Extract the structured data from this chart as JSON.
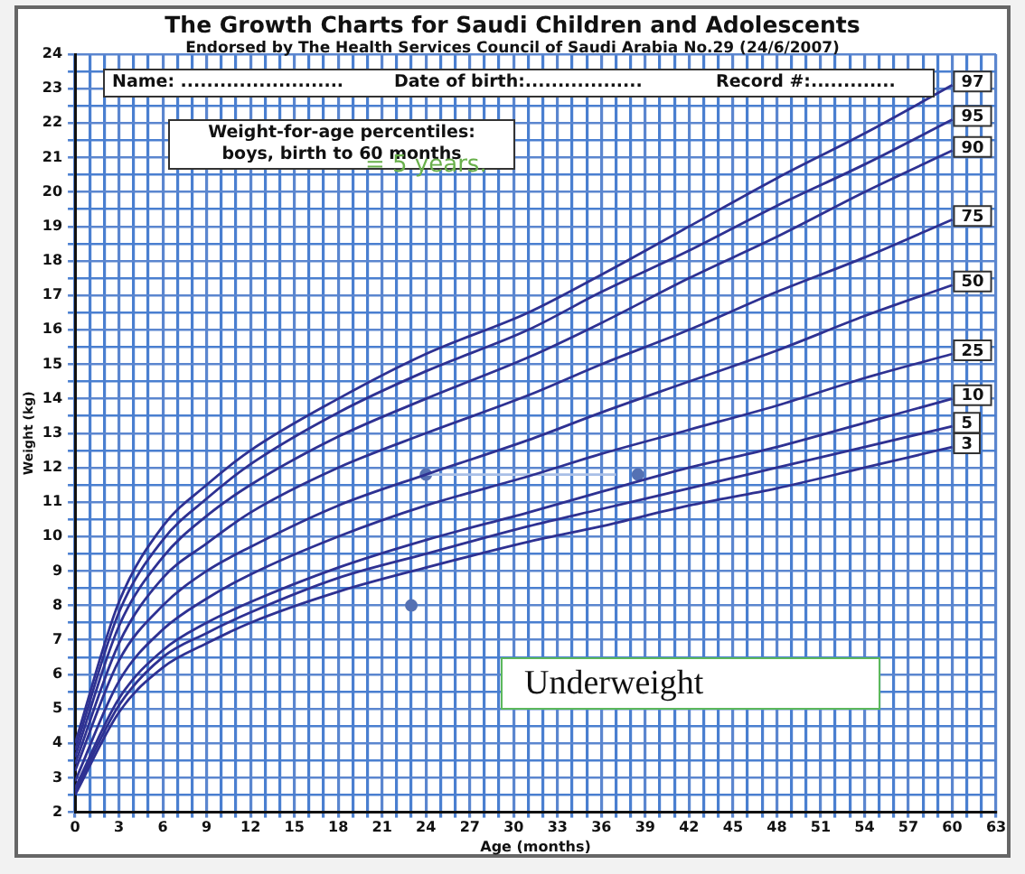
{
  "chart_data": {
    "type": "line",
    "title": "The Growth Charts for Saudi Children and Adolescents",
    "subtitle": "Endorsed by The Health Services Council of Saudi Arabia No.29 (24/6/2007)",
    "xlabel": "Age (months)",
    "ylabel": "Weight (kg)",
    "annotations": [
      "Name: .........................",
      "Date of birth:..................",
      "Record #:.............",
      "Weight-for-age percentiles: boys, birth to 60 months",
      "= 5 years.",
      "Underweight"
    ],
    "x": [
      0,
      3,
      6,
      9,
      12,
      18,
      24,
      31,
      36,
      42,
      48,
      54,
      60
    ],
    "series": [
      {
        "name": "97",
        "color": "#2e3192",
        "values": [
          4.0,
          8.1,
          10.3,
          11.5,
          12.5,
          14.0,
          15.3,
          16.5,
          17.6,
          19.0,
          20.4,
          21.7,
          23.1
        ]
      },
      {
        "name": "95",
        "color": "#2e3192",
        "values": [
          3.8,
          7.8,
          9.9,
          11.1,
          12.1,
          13.6,
          14.8,
          16.0,
          17.1,
          18.3,
          19.6,
          20.8,
          22.1
        ]
      },
      {
        "name": "90",
        "color": "#2e3192",
        "values": [
          3.6,
          7.4,
          9.4,
          10.6,
          11.5,
          12.9,
          14.0,
          15.2,
          16.2,
          17.5,
          18.7,
          20.0,
          21.2
        ]
      },
      {
        "name": "75",
        "color": "#2e3192",
        "values": [
          3.4,
          6.9,
          8.8,
          9.8,
          10.7,
          12.0,
          13.0,
          14.1,
          15.0,
          16.0,
          17.1,
          18.1,
          19.2
        ]
      },
      {
        "name": "50",
        "color": "#2e3192",
        "values": [
          3.2,
          6.4,
          8.0,
          9.0,
          9.7,
          10.9,
          11.8,
          12.8,
          13.6,
          14.5,
          15.4,
          16.4,
          17.3
        ]
      },
      {
        "name": "25",
        "color": "#2e3192",
        "values": [
          2.9,
          5.8,
          7.3,
          8.2,
          8.9,
          10.0,
          10.9,
          11.75,
          12.4,
          13.1,
          13.8,
          14.6,
          15.3
        ]
      },
      {
        "name": "10",
        "color": "#2e3192",
        "values": [
          2.7,
          5.3,
          6.7,
          7.5,
          8.1,
          9.1,
          9.9,
          10.7,
          11.3,
          12.0,
          12.6,
          13.3,
          14.0
        ]
      },
      {
        "name": "5",
        "color": "#2e3192",
        "values": [
          2.6,
          5.1,
          6.5,
          7.2,
          7.8,
          8.8,
          9.5,
          10.3,
          10.8,
          11.4,
          12.0,
          12.6,
          13.2
        ]
      },
      {
        "name": "3",
        "color": "#2e3192",
        "values": [
          2.5,
          4.9,
          6.2,
          6.9,
          7.5,
          8.4,
          9.1,
          9.85,
          10.3,
          10.9,
          11.4,
          12.0,
          12.6
        ]
      },
      {
        "type": "line",
        "color": "#a9bfe6",
        "x": [
          24,
          37
        ],
        "values": [
          11.8,
          11.8
        ]
      },
      {
        "type": "scatter",
        "marker": "circle",
        "color": "#5571b3",
        "x": [
          23,
          24,
          38.5
        ],
        "values": [
          8,
          11.8,
          11.8
        ]
      }
    ],
    "legend": false,
    "grid": true,
    "xlim": [
      0,
      63
    ],
    "ylim": [
      2,
      24
    ],
    "xticks": [
      0,
      {
        "value": 1,
        "label": null
      },
      {
        "value": 2,
        "label": null
      },
      3,
      {
        "value": 4,
        "label": null
      },
      {
        "value": 5,
        "label": null
      },
      6,
      {
        "value": 7,
        "label": null
      },
      {
        "value": 8,
        "label": null
      },
      9,
      {
        "value": 10,
        "label": null
      },
      {
        "value": 11,
        "label": null
      },
      12,
      {
        "value": 13,
        "label": null
      },
      {
        "value": 14,
        "label": null
      },
      15,
      {
        "value": 16,
        "label": null
      },
      {
        "value": 17,
        "label": null
      },
      18,
      {
        "value": 19,
        "label": null
      },
      {
        "value": 20,
        "label": null
      },
      21,
      {
        "value": 22,
        "label": null
      },
      {
        "value": 23,
        "label": null
      },
      24,
      {
        "value": 25,
        "label": null
      },
      {
        "value": 26,
        "label": null
      },
      27,
      {
        "value": 28,
        "label": null
      },
      {
        "value": 29,
        "label": null
      },
      30,
      {
        "value": 31,
        "label": null
      },
      {
        "value": 32,
        "label": null
      },
      33,
      {
        "value": 34,
        "label": null
      },
      {
        "value": 35,
        "label": null
      },
      36,
      {
        "value": 37,
        "label": null
      },
      {
        "value": 38,
        "label": null
      },
      39,
      {
        "value": 40,
        "label": null
      },
      {
        "value": 41,
        "label": null
      },
      42,
      {
        "value": 43,
        "label": null
      },
      {
        "value": 44,
        "label": null
      },
      45,
      {
        "value": 46,
        "label": null
      },
      {
        "value": 47,
        "label": null
      },
      48,
      {
        "value": 49,
        "label": null
      },
      {
        "value": 50,
        "label": null
      },
      51,
      {
        "value": 52,
        "label": null
      },
      {
        "value": 53,
        "label": null
      },
      54,
      {
        "value": 55,
        "label": null
      },
      {
        "value": 56,
        "label": null
      },
      57,
      {
        "value": 58,
        "label": null
      },
      {
        "value": 59,
        "label": null
      },
      60,
      {
        "value": 61,
        "label": null
      },
      {
        "value": 62,
        "label": null
      },
      63
    ],
    "yticks": [
      2,
      {
        "value": 2.5,
        "label": null
      },
      3,
      {
        "value": 3.5,
        "label": null
      },
      4,
      {
        "value": 4.5,
        "label": null
      },
      5,
      {
        "value": 5.5,
        "label": null
      },
      6,
      {
        "value": 6.5,
        "label": null
      },
      7,
      {
        "value": 7.5,
        "label": null
      },
      8,
      {
        "value": 8.5,
        "label": null
      },
      9,
      {
        "value": 9.5,
        "label": null
      },
      10,
      {
        "value": 10.5,
        "label": null
      },
      11,
      {
        "value": 11.5,
        "label": null
      },
      12,
      {
        "value": 12.5,
        "label": null
      },
      13,
      {
        "value": 13.5,
        "label": null
      },
      14,
      {
        "value": 14.5,
        "label": null
      },
      15,
      {
        "value": 15.5,
        "label": null
      },
      16,
      {
        "value": 16.5,
        "label": null
      },
      17,
      {
        "value": 17.5,
        "label": null
      },
      18,
      {
        "value": 18.5,
        "label": null
      },
      19,
      {
        "value": 19.5,
        "label": null
      },
      20,
      {
        "value": 20.5,
        "label": null
      },
      21,
      {
        "value": 21.5,
        "label": null
      },
      22,
      {
        "value": 22.5,
        "label": null
      },
      23,
      {
        "value": 23.5,
        "label": null
      },
      24
    ]
  }
}
